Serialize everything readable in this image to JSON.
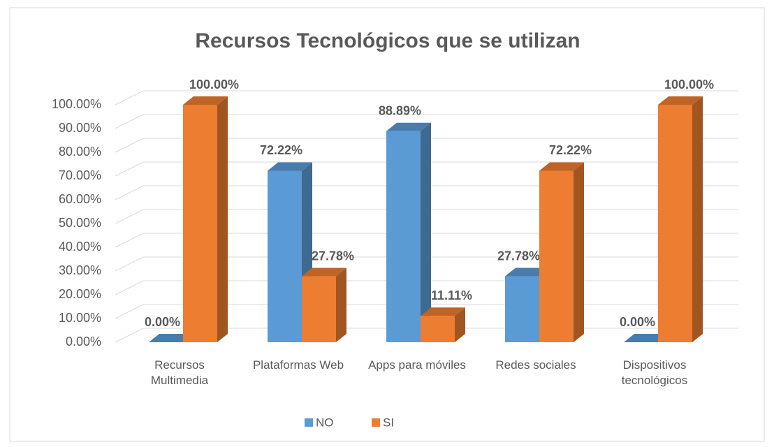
{
  "chart_data": {
    "type": "bar3d",
    "title": "Recursos Tecnológicos que se utilizan",
    "categories": [
      "Recursos Multimedia",
      "Plataformas Web",
      "Apps para móviles",
      "Redes sociales",
      "Dispositivos tecnológicos"
    ],
    "series": [
      {
        "name": "NO",
        "color": "#5b9bd5",
        "values": [
          0,
          72.22,
          88.89,
          27.78,
          0
        ],
        "value_labels": [
          "0.00%",
          "72.22%",
          "88.89%",
          "27.78%",
          "0.00%"
        ]
      },
      {
        "name": "SI",
        "color": "#ed7d31",
        "values": [
          100,
          27.78,
          11.11,
          72.22,
          100
        ],
        "value_labels": [
          "100.00%",
          "27.78%",
          "11.11%",
          "72.22%",
          "100.00%"
        ]
      }
    ],
    "ylim": [
      0,
      100
    ],
    "yticks": [
      {
        "value": 0,
        "label": "0.00%"
      },
      {
        "value": 10,
        "label": "10.00%"
      },
      {
        "value": 20,
        "label": "20.00%"
      },
      {
        "value": 30,
        "label": "30.00%"
      },
      {
        "value": 40,
        "label": "40.00%"
      },
      {
        "value": 50,
        "label": "50.00%"
      },
      {
        "value": 60,
        "label": "60.00%"
      },
      {
        "value": 70,
        "label": "70.00%"
      },
      {
        "value": 80,
        "label": "80.00%"
      },
      {
        "value": 90,
        "label": "90.00%"
      },
      {
        "value": 100,
        "label": "100.00%"
      }
    ],
    "grid": true,
    "legend": "bottom"
  }
}
